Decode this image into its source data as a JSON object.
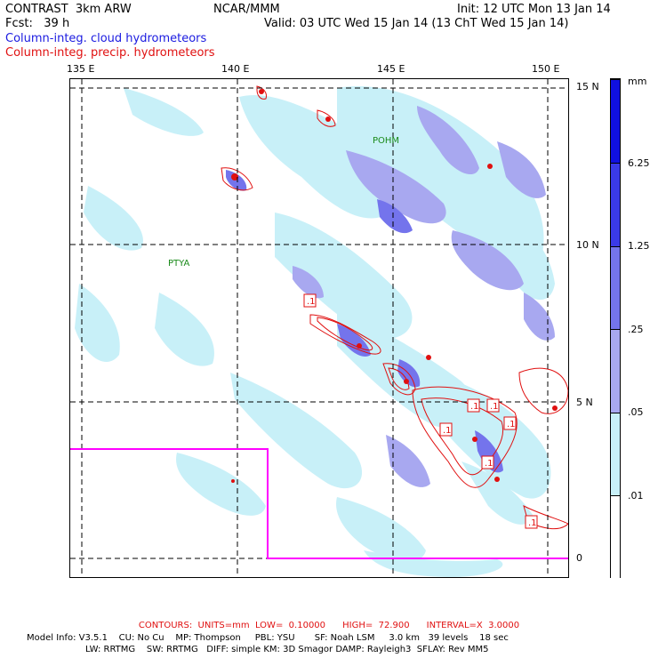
{
  "header": {
    "title_left": "CONTRAST  3km ARW",
    "title_mid": "NCAR/MMM",
    "init": "Init: 12 UTC Mon 13 Jan 14",
    "fcst": "Fcst:   39 h",
    "valid": "Valid: 03 UTC Wed 15 Jan 14 (13 ChT Wed 15 Jan 14)",
    "line_blue": "Column-integ. cloud hydrometeors",
    "line_red": "Column-integ. precip. hydrometeors"
  },
  "axes": {
    "lon_labels": [
      "135 E",
      "140 E",
      "145 E",
      "150 E"
    ],
    "lat_labels": [
      "15 N",
      "10 N",
      "5 N",
      "0"
    ]
  },
  "places": [
    "POHM",
    "PTYA"
  ],
  "box_labels": [
    ".1",
    ".1",
    ".1",
    ".1",
    ".1",
    ".1",
    ".1"
  ],
  "colorbar": {
    "unit": "mm",
    "labels": [
      "6.25",
      "1.25",
      ".25",
      ".05",
      ".01"
    ],
    "colors": [
      "#1010e0",
      "#3a3ae8",
      "#7474ec",
      "#a8a8f0",
      "#c8f0f8",
      "#ffffff"
    ]
  },
  "colors": {
    "cloud_light": "#c8f0f8",
    "cloud_mid": "#a8a8f0",
    "cloud_dark": "#7474ec",
    "precip": "#e01010",
    "domain_box": "#ff00ff"
  },
  "footer": {
    "contours": "CONTOURS:  UNITS=mm  LOW=  0.10000      HIGH=  72.900      INTERVAL=X  3.0000",
    "model_line1": "Model Info: V3.5.1    CU: No Cu    MP: Thompson     PBL: YSU       SF: Noah LSM     3.0 km   39 levels    18 sec",
    "model_line2": "LW: RRTMG    SW: RRTMG   DIFF: simple KM: 3D Smagor DAMP: Rayleigh3  SFLAY: Rev MM5"
  }
}
